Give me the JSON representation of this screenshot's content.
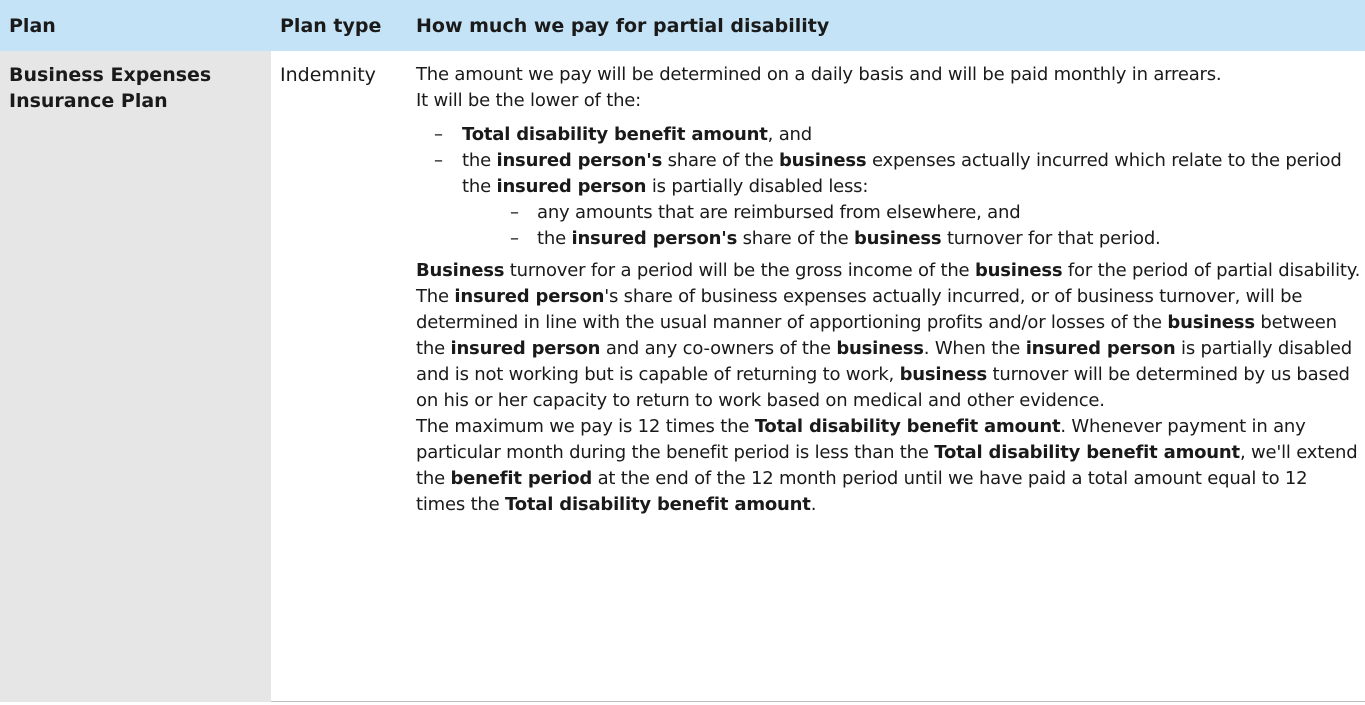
{
  "header": {
    "col_plan": "Plan",
    "col_type": "Plan type",
    "col_pay": "How much we pay for partial disability"
  },
  "row": {
    "plan_name": "Business Expenses Insurance Plan",
    "plan_type": "Indemnity",
    "intro_1": "The amount we pay will be determined on a daily basis and will be paid monthly in arrears.",
    "intro_2": "It will be the lower of the:",
    "bullet1": {
      "term": "Total disability benefit amount",
      "rest": ", and"
    },
    "bullet2": {
      "t1": "the ",
      "b1": "insured person's",
      "t2": " share of the ",
      "b2": "business",
      "t3": " expenses actually incurred which relate to the period the ",
      "b3": "insured person",
      "t4": " is partially disabled less:"
    },
    "sub1": "any amounts that are reimbursed from elsewhere, and",
    "sub2": {
      "t1": "the ",
      "b1": "insured person's",
      "t2": " share of the ",
      "b2": "business",
      "t3": " turnover for that period."
    },
    "para_turnover": {
      "b1": "Business",
      "t1": " turnover for a period will be the gross income of the ",
      "b2": "business",
      "t2": " for the period of partial disability."
    },
    "para_share": {
      "t0": "The ",
      "b1": "insured person",
      "t1": "'s share of business expenses actually incurred, or of business turnover, will be determined in line with the usual manner of apportioning profits and/or losses of the ",
      "b2": "business",
      "t2": " between the ",
      "b3": "insured person",
      "t3": " and any co-owners of the ",
      "b4": "business",
      "t4": ". When the ",
      "b5": "insured person",
      "t5": " is partially disabled and is not working but is capable of returning to work, ",
      "b6": "business",
      "t6": " turnover will be determined by us based on his or her capacity to return to work based on medical and other evidence."
    },
    "para_max": {
      "t0": "The maximum we pay is 12 times the ",
      "b1": "Total disability benefit amount",
      "t1": ". Whenever payment in any particular month during the benefit period is less than the ",
      "b2": "Total disability benefit amount",
      "t2": ", we'll extend the ",
      "b3": "benefit period",
      "t3": " at the end of the 12 month period until we have paid a total amount equal to 12 times the ",
      "b4": "Total disability benefit amount",
      "t4": "."
    }
  },
  "colors": {
    "header_bg": "#c5e3f6",
    "plan_cell_bg": "#e6e6e7",
    "text": "#1a1a1a"
  }
}
